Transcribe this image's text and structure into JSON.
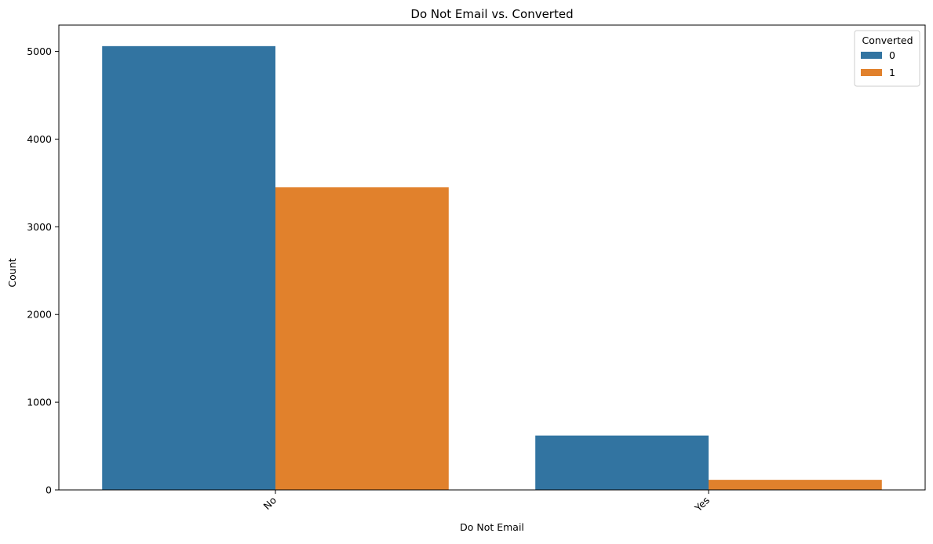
{
  "chart_data": {
    "type": "bar",
    "title": "Do Not Email vs. Converted",
    "xlabel": "Do Not Email",
    "ylabel": "Count",
    "categories": [
      "No",
      "Yes"
    ],
    "ylim": [
      0,
      5300
    ],
    "yticks": [
      0,
      1000,
      2000,
      3000,
      4000,
      5000
    ],
    "legend": {
      "title": "Converted",
      "placement": "top-right"
    },
    "grid": false,
    "series": [
      {
        "name": "0",
        "color": "#3274a1",
        "values": [
          5060,
          620
        ]
      },
      {
        "name": "1",
        "color": "#e1812c",
        "values": [
          3450,
          115
        ]
      }
    ]
  }
}
